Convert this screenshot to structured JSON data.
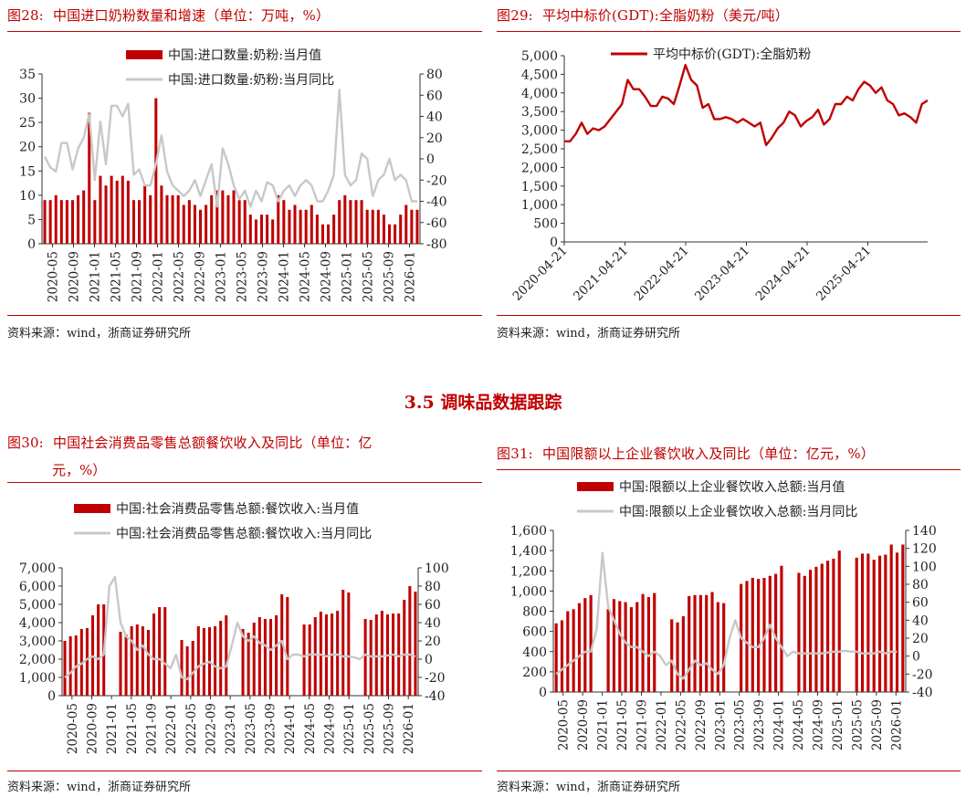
{
  "section_title": "3.5 调味品数据跟踪",
  "colors": {
    "accent": "#c00000",
    "bar": "#c00000",
    "line_gray": "#c8c8c8",
    "line_red": "#c00000"
  },
  "panels": {
    "p28": {
      "num": "图28:",
      "title": "中国进口奶粉数量和增速（单位：万吨，%）",
      "source": "资料来源：wind，浙商证券研究所"
    },
    "p29": {
      "num": "图29:",
      "title": "平均中标价(GDT):全脂奶粉（美元/吨）",
      "source": "资料来源：wind，浙商证券研究所"
    },
    "p30": {
      "num": "图30:",
      "title": "中国社会消费品零售总额餐饮收入及同比（单位：亿",
      "title_cont": "元，%）",
      "source": "资料来源：wind，浙商证券研究所"
    },
    "p31": {
      "num": "图31:",
      "title": "中国限额以上企业餐饮收入及同比（单位：亿元，%）",
      "source": "资料来源：wind，浙商证券研究所"
    }
  },
  "chart_data": [
    {
      "id": "chart28",
      "type": "bar",
      "title": "",
      "legend_placement": "top",
      "x_start": "2020-05",
      "x_tick_labels": [
        "2020-05",
        "2020-09",
        "2021-01",
        "2021-05",
        "2021-09",
        "2022-01",
        "2022-05",
        "2022-09",
        "2023-01",
        "2023-05",
        "2023-09",
        "2024-01",
        "2024-05",
        "2024-09",
        "2025-01",
        "2025-05",
        "2025-09",
        "2026-01"
      ],
      "y_left": {
        "min": 0,
        "max": 35,
        "step": 5,
        "ticks": [
          "0",
          "5",
          "10",
          "15",
          "20",
          "25",
          "30",
          "35"
        ]
      },
      "y_right": {
        "min": -80,
        "max": 80,
        "step": 20,
        "ticks": [
          "-80",
          "-60",
          "-40",
          "-20",
          "0",
          "20",
          "40",
          "60",
          "80"
        ]
      },
      "series": [
        {
          "name": "中国:进口数量:奶粉:当月值",
          "kind": "bar",
          "axis": "left",
          "values": [
            9,
            9,
            10,
            9,
            9,
            9,
            10,
            11,
            27,
            9,
            14,
            12,
            14,
            13,
            14,
            13,
            9,
            9,
            12,
            10,
            30,
            12,
            10,
            10,
            10,
            8,
            9,
            8,
            7,
            8,
            10,
            11,
            11,
            10,
            11,
            9,
            9,
            6,
            5,
            6,
            6,
            5,
            10,
            9,
            7,
            8,
            7,
            7,
            8,
            6,
            4,
            4,
            6,
            9,
            10,
            9,
            9,
            9,
            7,
            7,
            7,
            6,
            4,
            4,
            6,
            8,
            7,
            7
          ]
        },
        {
          "name": "中国:进口数量:奶粉:当月同比",
          "kind": "line",
          "axis": "right",
          "values": [
            2,
            -8,
            -12,
            15,
            15,
            -10,
            10,
            20,
            42,
            -20,
            35,
            -5,
            50,
            50,
            40,
            52,
            -15,
            -10,
            -25,
            -25,
            -5,
            22,
            -12,
            -25,
            -30,
            -35,
            -30,
            -20,
            -35,
            -20,
            -5,
            -45,
            10,
            -5,
            -25,
            -38,
            -30,
            -45,
            -30,
            -40,
            -22,
            -25,
            -40,
            -30,
            -25,
            -35,
            -25,
            -20,
            -25,
            -40,
            -40,
            -30,
            -15,
            65,
            -15,
            -25,
            -20,
            5,
            0,
            -35,
            -20,
            -15,
            0,
            -20,
            -15,
            -20,
            -40,
            -40
          ]
        }
      ]
    },
    {
      "id": "chart29",
      "type": "line",
      "title": "",
      "legend_placement": "top",
      "x_tick_labels": [
        "2020-04-21",
        "2021-04-21",
        "2022-04-21",
        "2023-04-21",
        "2024-04-21",
        "2025-04-21"
      ],
      "y": {
        "min": 0,
        "max": 5000,
        "step": 500,
        "ticks": [
          "0",
          "500",
          "1,000",
          "1,500",
          "2,000",
          "2,500",
          "3,000",
          "3,500",
          "4,000",
          "4,500",
          "5,000"
        ]
      },
      "series": [
        {
          "name": "平均中标价(GDT):全脂奶粉",
          "kind": "line",
          "values": [
            2700,
            2700,
            2900,
            3200,
            2900,
            3050,
            3000,
            3100,
            3300,
            3500,
            3700,
            4350,
            4100,
            4100,
            3900,
            3650,
            3650,
            3900,
            3850,
            3700,
            4200,
            4750,
            4350,
            4200,
            3600,
            3700,
            3300,
            3300,
            3350,
            3300,
            3200,
            3300,
            3200,
            3100,
            3200,
            2600,
            2800,
            3050,
            3200,
            3500,
            3400,
            3100,
            3250,
            3350,
            3550,
            3150,
            3300,
            3700,
            3700,
            3900,
            3800,
            4100,
            4300,
            4200,
            4000,
            4150,
            3800,
            3700,
            3400,
            3450,
            3350,
            3200,
            3700,
            3800
          ]
        }
      ]
    },
    {
      "id": "chart30",
      "type": "bar",
      "title": "",
      "legend_placement": "top",
      "x_tick_labels": [
        "2020-05",
        "2020-09",
        "2021-01",
        "2021-05",
        "2021-09",
        "2022-01",
        "2022-05",
        "2022-09",
        "2023-01",
        "2023-05",
        "2023-09",
        "2024-01",
        "2024-05",
        "2024-09",
        "2025-01",
        "2025-05",
        "2025-09",
        "2026-01"
      ],
      "y_left": {
        "min": 0,
        "max": 7000,
        "step": 1000,
        "ticks": [
          "0",
          "1,000",
          "2,000",
          "3,000",
          "4,000",
          "5,000",
          "6,000",
          "7,000"
        ]
      },
      "y_right": {
        "min": -40,
        "max": 100,
        "step": 20,
        "ticks": [
          "-40",
          "-20",
          "0",
          "20",
          "40",
          "60",
          "80",
          "100"
        ]
      },
      "series": [
        {
          "name": "中国:社会消费品零售总额:餐饮收入:当月值",
          "kind": "bar",
          "axis": "left",
          "values": [
            3000,
            3250,
            3300,
            3650,
            3700,
            4400,
            5000,
            5000,
            null,
            null,
            3500,
            3350,
            3800,
            3900,
            3800,
            3600,
            4500,
            4850,
            4850,
            null,
            null,
            3050,
            2700,
            3000,
            3800,
            3700,
            3750,
            3800,
            4100,
            4400,
            null,
            null,
            3650,
            3450,
            4000,
            4300,
            4200,
            4200,
            4400,
            5550,
            5400,
            null,
            null,
            3900,
            3900,
            4300,
            4600,
            4450,
            4500,
            4650,
            5800,
            5650,
            null,
            null,
            4200,
            4150,
            4450,
            4650,
            4450,
            4500,
            4500,
            5250,
            6000,
            5700
          ]
        },
        {
          "name": "中国:社会消费品零售总额:餐饮收入:当月同比",
          "kind": "line",
          "axis": "right",
          "values": [
            -20,
            -15,
            -8,
            -5,
            0,
            3,
            0,
            5,
            80,
            90,
            40,
            25,
            20,
            10,
            15,
            5,
            0,
            0,
            -5,
            -10,
            5,
            -20,
            -22,
            -15,
            -8,
            -5,
            -3,
            -8,
            -10,
            -8,
            15,
            40,
            25,
            20,
            25,
            18,
            15,
            10,
            15,
            20,
            0,
            5,
            5,
            3,
            5,
            5,
            5,
            3,
            5,
            5,
            3,
            3,
            2,
            0,
            5,
            3,
            3,
            3,
            4,
            5,
            3,
            5,
            5,
            3
          ]
        }
      ]
    },
    {
      "id": "chart31",
      "type": "bar",
      "title": "",
      "legend_placement": "top",
      "x_tick_labels": [
        "2020-05",
        "2020-09",
        "2021-01",
        "2021-05",
        "2021-09",
        "2022-01",
        "2022-05",
        "2022-09",
        "2023-01",
        "2023-05",
        "2023-09",
        "2024-01",
        "2024-05",
        "2024-09",
        "2025-01",
        "2025-05",
        "2025-09",
        "2026-01"
      ],
      "y_left": {
        "min": 0,
        "max": 1600,
        "step": 200,
        "ticks": [
          "0",
          "200",
          "400",
          "600",
          "800",
          "1,000",
          "1,200",
          "1,400",
          "1,600"
        ]
      },
      "y_right": {
        "min": -40,
        "max": 140,
        "step": 20,
        "ticks": [
          "-40",
          "-20",
          "0",
          "20",
          "40",
          "60",
          "80",
          "100",
          "120",
          "140"
        ]
      },
      "series": [
        {
          "name": "中国:限额以上企业餐饮收入总额:当月值",
          "kind": "bar",
          "axis": "left",
          "values": [
            680,
            710,
            800,
            820,
            880,
            930,
            960,
            null,
            null,
            820,
            920,
            900,
            890,
            840,
            890,
            970,
            940,
            980,
            null,
            null,
            720,
            690,
            750,
            950,
            960,
            960,
            960,
            990,
            890,
            880,
            null,
            null,
            1070,
            1100,
            1130,
            1120,
            1130,
            1150,
            1170,
            1250,
            null,
            null,
            1180,
            1150,
            1210,
            1240,
            1270,
            1300,
            1320,
            1400,
            null,
            null,
            1330,
            1370,
            1370,
            1310,
            1350,
            1360,
            1460,
            1380,
            1460
          ]
        },
        {
          "name": "中国:限额以上企业餐饮收入总额:当月同比",
          "kind": "line",
          "axis": "right",
          "values": [
            -20,
            -15,
            -10,
            -5,
            0,
            5,
            5,
            30,
            115,
            55,
            40,
            25,
            15,
            10,
            10,
            5,
            0,
            5,
            0,
            -10,
            -5,
            -20,
            -25,
            -15,
            -5,
            -10,
            -8,
            -15,
            -20,
            -10,
            20,
            40,
            20,
            15,
            10,
            10,
            20,
            35,
            20,
            10,
            0,
            5,
            3,
            3,
            3,
            3,
            3,
            4,
            5,
            5,
            6,
            5,
            5,
            3,
            3,
            3,
            5,
            3,
            5,
            5
          ]
        }
      ]
    }
  ]
}
